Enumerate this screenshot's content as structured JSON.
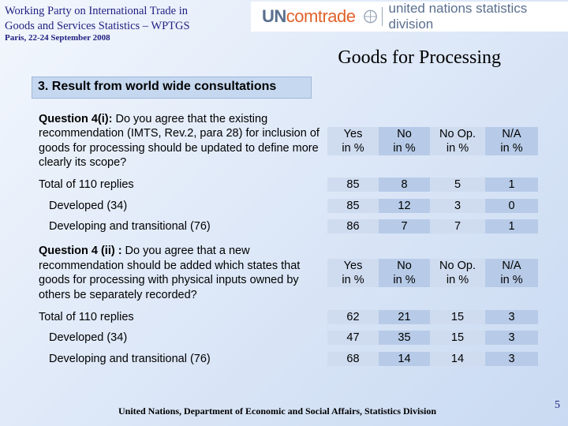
{
  "header": {
    "title_line1": "Working Party on International Trade in",
    "title_line2": "Goods and Services Statistics – WPTGS",
    "subtitle": "Paris, 22-24 September 2008",
    "logo_un": "UN",
    "logo_comtrade": "comtrade",
    "logo_division": "united nations statistics division"
  },
  "slide_title": "Goods for Processing",
  "section_heading": "3. Result from world wide consultations",
  "columns": [
    "Yes\nin %",
    "No\nin %",
    "No Op.\nin %",
    "N/A\nin %"
  ],
  "q1": {
    "prefix": "Question 4(i):",
    "text": " Do you agree that the existing recommendation (IMTS, Rev.2, para 28) for inclusion of goods for processing should be updated to define more clearly its scope?",
    "cols": [
      "Yes in %",
      "No in %",
      "No Op. in %",
      "N/A in %"
    ],
    "rows": [
      {
        "label": "Total of 110 replies",
        "values": [
          "85",
          "8",
          "5",
          "1"
        ]
      },
      {
        "label": "Developed (34)",
        "values": [
          "85",
          "12",
          "3",
          "0"
        ]
      },
      {
        "label": "Developing and transitional (76)",
        "values": [
          "86",
          "7",
          "7",
          "1"
        ]
      }
    ]
  },
  "q2": {
    "prefix": "Question 4 (ii) :",
    "text": " Do you agree that a new recommendation should be added which states that goods for processing with physical inputs owned by others be separately recorded?",
    "cols": [
      "Yes in %",
      "No in %",
      "No Op. in %",
      "N/A in %"
    ],
    "rows": [
      {
        "label": "Total of 110 replies",
        "values": [
          "62",
          "21",
          "15",
          "3"
        ]
      },
      {
        "label": "Developed (34)",
        "values": [
          "47",
          "35",
          "15",
          "3"
        ]
      },
      {
        "label": "Developing and transitional (76)",
        "values": [
          "68",
          "14",
          "14",
          "3"
        ]
      }
    ]
  },
  "footer": "United Nations, Department of Economic and Social Affairs, Statistics Division",
  "page_number": "5"
}
